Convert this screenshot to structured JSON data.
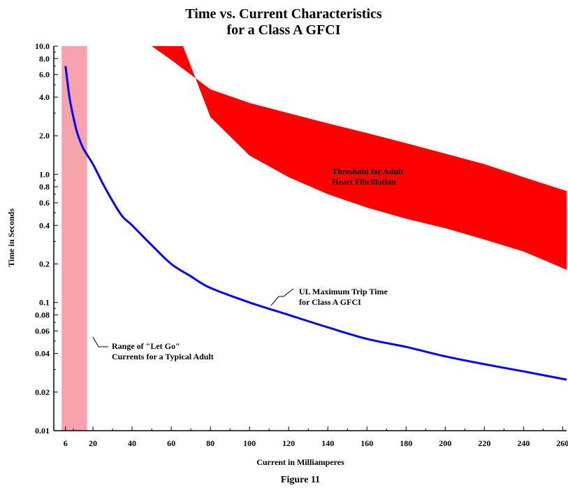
{
  "chart_data": {
    "type": "line",
    "title": [
      "Time vs. Current Characteristics",
      "for a Class A GFCI"
    ],
    "xlabel": "Current in Milliamperes",
    "ylabel": "Time in Seconds",
    "caption": "Figure 11",
    "x_scale": "linear",
    "y_scale": "log",
    "xlim": [
      0,
      262
    ],
    "ylim": [
      0.01,
      10
    ],
    "grid": false,
    "x_ticks": [
      {
        "value": 6,
        "label": "6"
      },
      {
        "value": 20,
        "label": "20"
      },
      {
        "value": 40,
        "label": "40"
      },
      {
        "value": 60,
        "label": "60"
      },
      {
        "value": 80,
        "label": "80"
      },
      {
        "value": 100,
        "label": "100"
      },
      {
        "value": 120,
        "label": "120"
      },
      {
        "value": 140,
        "label": "140"
      },
      {
        "value": 160,
        "label": "160"
      },
      {
        "value": 180,
        "label": "180"
      },
      {
        "value": 200,
        "label": "200"
      },
      {
        "value": 220,
        "label": "220"
      },
      {
        "value": 240,
        "label": "240"
      },
      {
        "value": 260,
        "label": "260"
      }
    ],
    "y_ticks": [
      {
        "value": 10,
        "label": "10.0"
      },
      {
        "value": 8,
        "label": "8.0"
      },
      {
        "value": 6,
        "label": "6.0"
      },
      {
        "value": 4,
        "label": "4.0"
      },
      {
        "value": 2,
        "label": "2.0"
      },
      {
        "value": 1,
        "label": "1.0"
      },
      {
        "value": 0.8,
        "label": "0.8"
      },
      {
        "value": 0.6,
        "label": "0.6"
      },
      {
        "value": 0.4,
        "label": "0.4"
      },
      {
        "value": 0.2,
        "label": "0.2"
      },
      {
        "value": 0.1,
        "label": "0.1"
      },
      {
        "value": 0.08,
        "label": "0.08"
      },
      {
        "value": 0.06,
        "label": "0.06"
      },
      {
        "value": 0.04,
        "label": "0.04"
      },
      {
        "value": 0.02,
        "label": "0.02"
      },
      {
        "value": 0.01,
        "label": "0.01"
      }
    ],
    "let_go_range": {
      "x_range": [
        4,
        17
      ],
      "color": "#f7a3ae",
      "label": [
        "Range of \"Let Go\"",
        "Currents for a Typical Adult"
      ]
    },
    "fibrillation_band": {
      "color": "#ff0000",
      "label": [
        "Threshold for Adult",
        "Heart Fibrillation"
      ],
      "upper": [
        {
          "x": 50,
          "y": 10
        },
        {
          "x": 60,
          "y": 7.8
        },
        {
          "x": 80,
          "y": 4.6
        },
        {
          "x": 100,
          "y": 3.6
        },
        {
          "x": 120,
          "y": 3.0
        },
        {
          "x": 140,
          "y": 2.5
        },
        {
          "x": 160,
          "y": 2.1
        },
        {
          "x": 180,
          "y": 1.75
        },
        {
          "x": 200,
          "y": 1.45
        },
        {
          "x": 220,
          "y": 1.2
        },
        {
          "x": 240,
          "y": 0.95
        },
        {
          "x": 262,
          "y": 0.74
        }
      ],
      "lower": [
        {
          "x": 66,
          "y": 10
        },
        {
          "x": 70,
          "y": 7
        },
        {
          "x": 80,
          "y": 2.8
        },
        {
          "x": 100,
          "y": 1.4
        },
        {
          "x": 120,
          "y": 0.95
        },
        {
          "x": 140,
          "y": 0.7
        },
        {
          "x": 160,
          "y": 0.55
        },
        {
          "x": 180,
          "y": 0.45
        },
        {
          "x": 200,
          "y": 0.38
        },
        {
          "x": 220,
          "y": 0.31
        },
        {
          "x": 240,
          "y": 0.25
        },
        {
          "x": 262,
          "y": 0.18
        }
      ]
    },
    "series": [
      {
        "name": "UL Maximum Trip Time",
        "color": "#0000ff",
        "points": [
          {
            "x": 6,
            "y": 7.0
          },
          {
            "x": 8,
            "y": 4.0
          },
          {
            "x": 10,
            "y": 2.8
          },
          {
            "x": 12,
            "y": 2.1
          },
          {
            "x": 15,
            "y": 1.6
          },
          {
            "x": 20,
            "y": 1.2
          },
          {
            "x": 25,
            "y": 0.85
          },
          {
            "x": 30,
            "y": 0.62
          },
          {
            "x": 35,
            "y": 0.47
          },
          {
            "x": 40,
            "y": 0.4
          },
          {
            "x": 50,
            "y": 0.28
          },
          {
            "x": 60,
            "y": 0.2
          },
          {
            "x": 70,
            "y": 0.16
          },
          {
            "x": 80,
            "y": 0.13
          },
          {
            "x": 100,
            "y": 0.1
          },
          {
            "x": 120,
            "y": 0.08
          },
          {
            "x": 140,
            "y": 0.064
          },
          {
            "x": 160,
            "y": 0.052
          },
          {
            "x": 180,
            "y": 0.045
          },
          {
            "x": 200,
            "y": 0.038
          },
          {
            "x": 220,
            "y": 0.033
          },
          {
            "x": 240,
            "y": 0.029
          },
          {
            "x": 262,
            "y": 0.025
          }
        ]
      }
    ],
    "annotations": [
      {
        "text": [
          "UL Maximum Trip Time",
          "for Class A GFCI"
        ],
        "points_to": {
          "x": 96,
          "y": 0.1
        }
      },
      {
        "text": [
          "Range of \"Let Go\"",
          "Currents for a Typical Adult"
        ],
        "points_to": {
          "x": 15,
          "y": 0.06
        }
      }
    ]
  }
}
